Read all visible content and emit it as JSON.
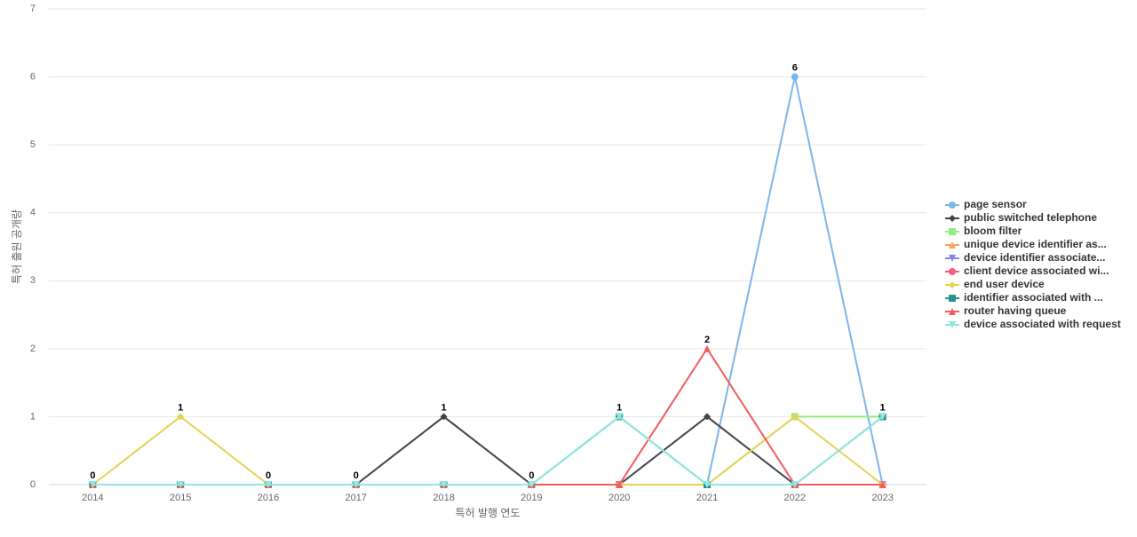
{
  "chart_data": {
    "type": "line",
    "x_label": "특허 발행 연도",
    "y_label": "특허 출원 공개량",
    "categories": [
      "2014",
      "2015",
      "2016",
      "2017",
      "2018",
      "2019",
      "2020",
      "2021",
      "2022",
      "2023"
    ],
    "ylim": [
      0,
      7
    ],
    "yticks": [
      0,
      1,
      2,
      3,
      4,
      5,
      6,
      7
    ],
    "grid": true,
    "legend": "right",
    "data_labels": true,
    "series": [
      {
        "name": "page sensor",
        "color": "#7cb5ec",
        "values": [
          0,
          0,
          0,
          0,
          0,
          0,
          0,
          0,
          6,
          0
        ]
      },
      {
        "name": "public switched telephone",
        "color": "#434348",
        "values": [
          0,
          0,
          0,
          0,
          1,
          0,
          0,
          1,
          0,
          0
        ]
      },
      {
        "name": "bloom filter",
        "color": "#90ed7d",
        "values": [
          0,
          0,
          0,
          0,
          0,
          0,
          0,
          0,
          1,
          1
        ]
      },
      {
        "name": "unique device identifier as...",
        "color": "#f7a35c",
        "values": [
          0,
          0,
          0,
          0,
          0,
          0,
          0,
          0,
          0,
          0
        ]
      },
      {
        "name": "device identifier associate...",
        "color": "#8085e9",
        "values": [
          0,
          0,
          0,
          0,
          0,
          0,
          0,
          0,
          0,
          0
        ]
      },
      {
        "name": "client device associated wi...",
        "color": "#f15c80",
        "values": [
          0,
          0,
          0,
          0,
          0,
          0,
          0,
          0,
          0,
          0
        ]
      },
      {
        "name": "end user device",
        "color": "#e4d354",
        "values": [
          0,
          1,
          0,
          0,
          0,
          0,
          0,
          0,
          1,
          0
        ]
      },
      {
        "name": "identifier associated with ...",
        "color": "#2b908f",
        "values": [
          0,
          0,
          0,
          0,
          0,
          0,
          1,
          0,
          0,
          1
        ]
      },
      {
        "name": "router having queue",
        "color": "#f45b5b",
        "values": [
          0,
          0,
          0,
          0,
          0,
          0,
          0,
          2,
          0,
          0
        ]
      },
      {
        "name": "device associated with request",
        "color": "#91e8e1",
        "values": [
          0,
          0,
          0,
          0,
          0,
          0,
          1,
          0,
          0,
          1
        ]
      }
    ]
  }
}
